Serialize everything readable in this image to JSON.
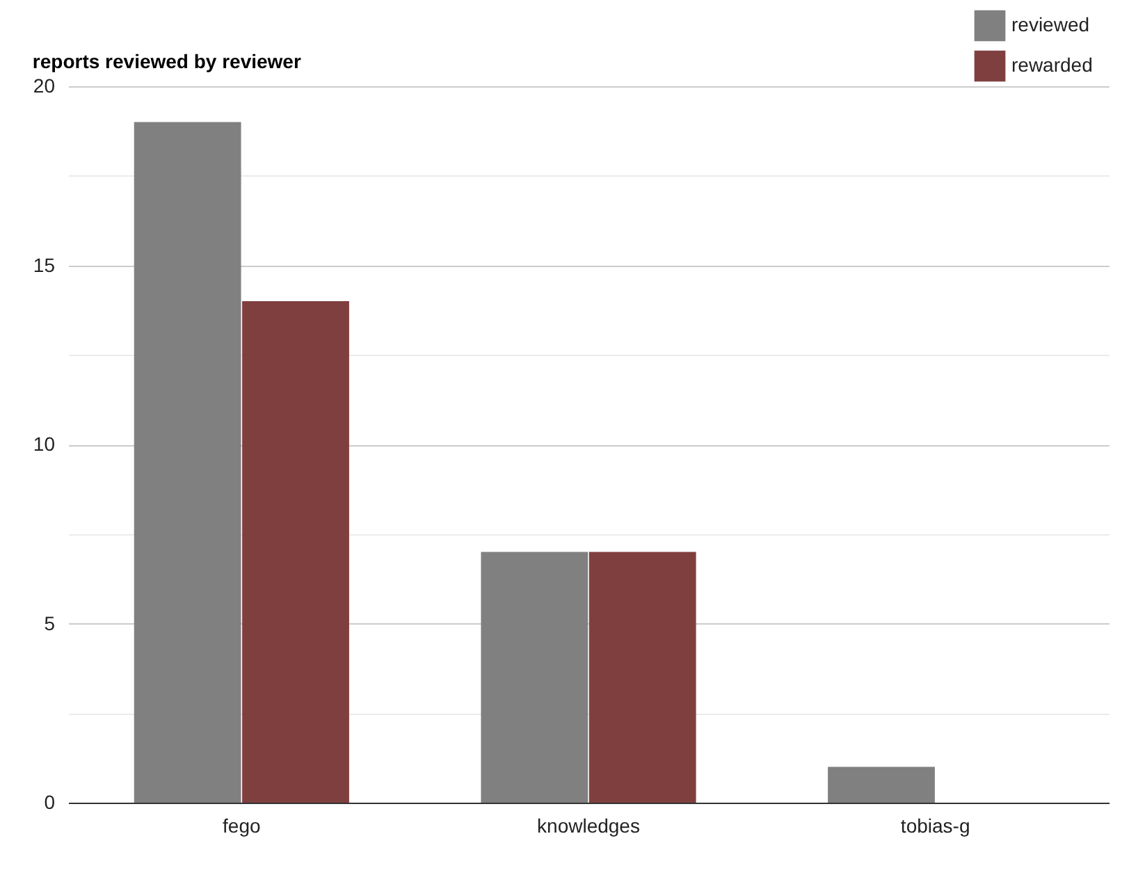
{
  "chart_data": {
    "type": "bar",
    "title": "reports reviewed by reviewer",
    "categories": [
      "fego",
      "knowledges",
      "tobias-g"
    ],
    "series": [
      {
        "name": "reviewed",
        "color": "#808080",
        "values": [
          19,
          7,
          1
        ]
      },
      {
        "name": "rewarded",
        "color": "#803f3f",
        "values": [
          14,
          7,
          0
        ]
      }
    ],
    "ylim": [
      0,
      20
    ],
    "yticks": [
      0,
      {
        "value": 2.5,
        "label": null
      },
      5,
      {
        "value": 7.5,
        "label": null
      },
      10,
      {
        "value": 12.5,
        "label": null
      },
      15,
      {
        "value": 17.5,
        "label": null
      },
      20
    ],
    "grid": true,
    "legend": "top right"
  }
}
